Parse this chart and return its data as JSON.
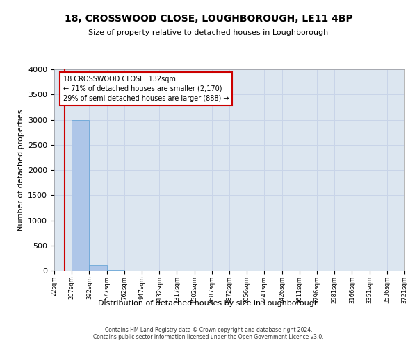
{
  "title": "18, CROSSWOOD CLOSE, LOUGHBOROUGH, LE11 4BP",
  "subtitle": "Size of property relative to detached houses in Loughborough",
  "xlabel": "Distribution of detached houses by size in Loughborough",
  "ylabel": "Number of detached properties",
  "footer_line1": "Contains HM Land Registry data © Crown copyright and database right 2024.",
  "footer_line2": "Contains public sector information licensed under the Open Government Licence v3.0.",
  "bin_edges": [
    22,
    207,
    392,
    577,
    762,
    947,
    1132,
    1317,
    1502,
    1687,
    1872,
    2056,
    2241,
    2426,
    2611,
    2796,
    2981,
    3166,
    3351,
    3536,
    3721
  ],
  "bin_labels": [
    "22sqm",
    "207sqm",
    "392sqm",
    "577sqm",
    "762sqm",
    "947sqm",
    "1132sqm",
    "1317sqm",
    "1502sqm",
    "1687sqm",
    "1872sqm",
    "2056sqm",
    "2241sqm",
    "2426sqm",
    "2611sqm",
    "2796sqm",
    "2981sqm",
    "3166sqm",
    "3351sqm",
    "3536sqm",
    "3721sqm"
  ],
  "bar_heights": [
    0,
    3000,
    110,
    15,
    5,
    3,
    2,
    1,
    1,
    1,
    1,
    0,
    0,
    0,
    0,
    0,
    0,
    0,
    0,
    0
  ],
  "bar_color": "#aec6e8",
  "bar_edge_color": "#5a9fd4",
  "property_size_sqm": 132,
  "property_line_color": "#cc0000",
  "annotation_line1": "18 CROSSWOOD CLOSE: 132sqm",
  "annotation_line2": "← 71% of detached houses are smaller (2,170)",
  "annotation_line3": "29% of semi-detached houses are larger (888) →",
  "annotation_box_color": "#ffffff",
  "annotation_box_edge_color": "#cc0000",
  "ylim_max": 4000,
  "yticks": [
    0,
    500,
    1000,
    1500,
    2000,
    2500,
    3000,
    3500,
    4000
  ],
  "grid_color": "#c8d4e8",
  "axes_bg_color": "#dce6f0",
  "fig_bg_color": "#ffffff"
}
